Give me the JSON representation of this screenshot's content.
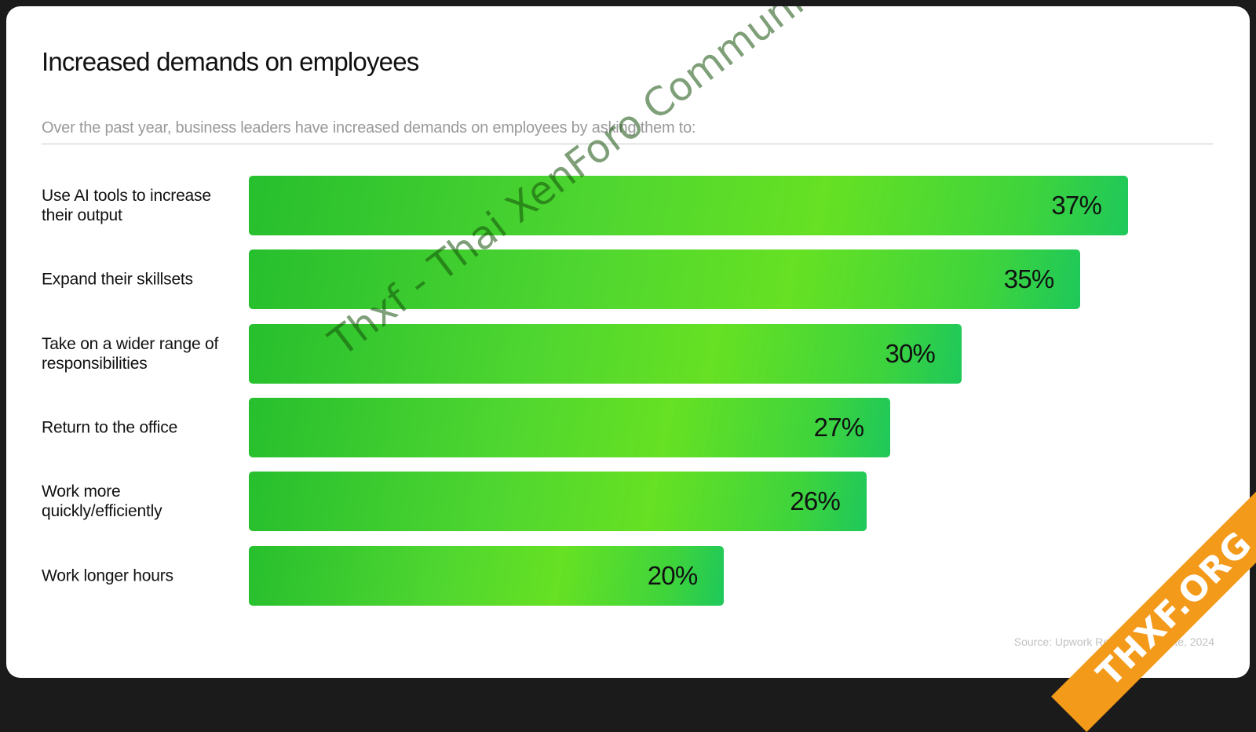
{
  "title": "Increased demands on employees",
  "subtitle": "Over the past year, business leaders have increased demands on employees by asking them to:",
  "source": "Source: Upwork Research Institute, 2024",
  "watermark": "Thxf - Thai XenForo Community",
  "ribbon": "THXF.ORG",
  "chart_data": {
    "type": "bar",
    "orientation": "horizontal",
    "categories": [
      "Use AI tools to increase their output",
      "Expand their skillsets",
      "Take on a wider range of responsibilities",
      "Return to the office",
      "Work more quickly/efficiently",
      "Work longer hours"
    ],
    "values": [
      37,
      35,
      30,
      27,
      26,
      20
    ],
    "value_labels": [
      "37%",
      "35%",
      "30%",
      "27%",
      "26%",
      "20%"
    ],
    "grid": false,
    "colors": {
      "bar_start": "#27bf2e",
      "bar_mid": "#66e123",
      "bar_end": "#1ec85a",
      "text": "#111111"
    }
  }
}
